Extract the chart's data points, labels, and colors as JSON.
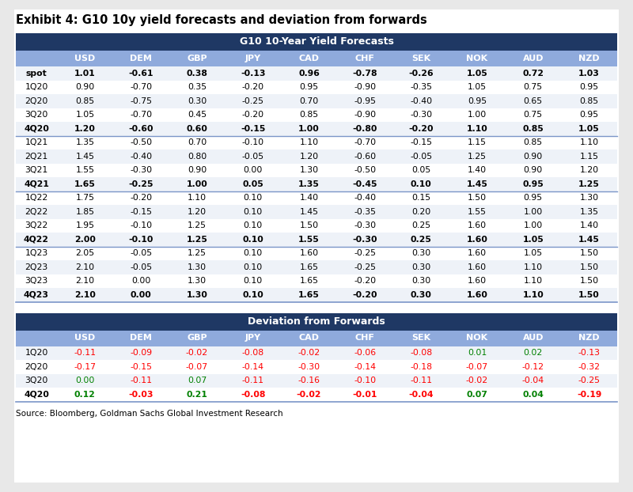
{
  "title": "Exhibit 4: G10 10y yield forecasts and deviation from forwards",
  "source": "Source: Bloomberg, Goldman Sachs Global Investment Research",
  "table1_header": "G10 10-Year Yield Forecasts",
  "table2_header": "Deviation from Forwards",
  "columns": [
    "",
    "USD",
    "DEM",
    "GBP",
    "JPY",
    "CAD",
    "CHF",
    "SEK",
    "NOK",
    "AUD",
    "NZD"
  ],
  "table1_rows": [
    [
      "spot",
      "1.01",
      "-0.61",
      "0.38",
      "-0.13",
      "0.96",
      "-0.78",
      "-0.26",
      "1.05",
      "0.72",
      "1.03"
    ],
    [
      "1Q20",
      "0.90",
      "-0.70",
      "0.35",
      "-0.20",
      "0.95",
      "-0.90",
      "-0.35",
      "1.05",
      "0.75",
      "0.95"
    ],
    [
      "2Q20",
      "0.85",
      "-0.75",
      "0.30",
      "-0.25",
      "0.70",
      "-0.95",
      "-0.40",
      "0.95",
      "0.65",
      "0.85"
    ],
    [
      "3Q20",
      "1.05",
      "-0.70",
      "0.45",
      "-0.20",
      "0.85",
      "-0.90",
      "-0.30",
      "1.00",
      "0.75",
      "0.95"
    ],
    [
      "4Q20",
      "1.20",
      "-0.60",
      "0.60",
      "-0.15",
      "1.00",
      "-0.80",
      "-0.20",
      "1.10",
      "0.85",
      "1.05"
    ],
    [
      "1Q21",
      "1.35",
      "-0.50",
      "0.70",
      "-0.10",
      "1.10",
      "-0.70",
      "-0.15",
      "1.15",
      "0.85",
      "1.10"
    ],
    [
      "2Q21",
      "1.45",
      "-0.40",
      "0.80",
      "-0.05",
      "1.20",
      "-0.60",
      "-0.05",
      "1.25",
      "0.90",
      "1.15"
    ],
    [
      "3Q21",
      "1.55",
      "-0.30",
      "0.90",
      "0.00",
      "1.30",
      "-0.50",
      "0.05",
      "1.40",
      "0.90",
      "1.20"
    ],
    [
      "4Q21",
      "1.65",
      "-0.25",
      "1.00",
      "0.05",
      "1.35",
      "-0.45",
      "0.10",
      "1.45",
      "0.95",
      "1.25"
    ],
    [
      "1Q22",
      "1.75",
      "-0.20",
      "1.10",
      "0.10",
      "1.40",
      "-0.40",
      "0.15",
      "1.50",
      "0.95",
      "1.30"
    ],
    [
      "2Q22",
      "1.85",
      "-0.15",
      "1.20",
      "0.10",
      "1.45",
      "-0.35",
      "0.20",
      "1.55",
      "1.00",
      "1.35"
    ],
    [
      "3Q22",
      "1.95",
      "-0.10",
      "1.25",
      "0.10",
      "1.50",
      "-0.30",
      "0.25",
      "1.60",
      "1.00",
      "1.40"
    ],
    [
      "4Q22",
      "2.00",
      "-0.10",
      "1.25",
      "0.10",
      "1.55",
      "-0.30",
      "0.25",
      "1.60",
      "1.05",
      "1.45"
    ],
    [
      "1Q23",
      "2.05",
      "-0.05",
      "1.25",
      "0.10",
      "1.60",
      "-0.25",
      "0.30",
      "1.60",
      "1.05",
      "1.50"
    ],
    [
      "2Q23",
      "2.10",
      "-0.05",
      "1.30",
      "0.10",
      "1.65",
      "-0.25",
      "0.30",
      "1.60",
      "1.10",
      "1.50"
    ],
    [
      "3Q23",
      "2.10",
      "0.00",
      "1.30",
      "0.10",
      "1.65",
      "-0.20",
      "0.30",
      "1.60",
      "1.10",
      "1.50"
    ],
    [
      "4Q23",
      "2.10",
      "0.00",
      "1.30",
      "0.10",
      "1.65",
      "-0.20",
      "0.30",
      "1.60",
      "1.10",
      "1.50"
    ]
  ],
  "table1_bold_rows": [
    0,
    4,
    8,
    12,
    16
  ],
  "table1_separator_rows": [
    4,
    8,
    12
  ],
  "table2_rows": [
    [
      "1Q20",
      "-0.11",
      "-0.09",
      "-0.02",
      "-0.08",
      "-0.02",
      "-0.06",
      "-0.08",
      "0.01",
      "0.02",
      "-0.13"
    ],
    [
      "2Q20",
      "-0.17",
      "-0.15",
      "-0.07",
      "-0.14",
      "-0.30",
      "-0.14",
      "-0.18",
      "-0.07",
      "-0.12",
      "-0.32"
    ],
    [
      "3Q20",
      "0.00",
      "-0.11",
      "0.07",
      "-0.11",
      "-0.16",
      "-0.10",
      "-0.11",
      "-0.02",
      "-0.04",
      "-0.25"
    ],
    [
      "4Q20",
      "0.12",
      "-0.03",
      "0.21",
      "-0.08",
      "-0.02",
      "-0.01",
      "-0.04",
      "0.07",
      "0.04",
      "-0.19"
    ]
  ],
  "table2_bold_rows": [
    3
  ],
  "table2_colors": [
    [
      "-",
      "-",
      "-",
      "-",
      "-",
      "-",
      "-",
      "+",
      "+",
      "-"
    ],
    [
      "-",
      "-",
      "-",
      "-",
      "-",
      "-",
      "-",
      "-",
      "-",
      "-"
    ],
    [
      "0",
      "-",
      "+",
      "-",
      "-",
      "-",
      "-",
      "-",
      "-",
      "-"
    ],
    [
      "+",
      "-",
      "+",
      "-",
      "-",
      "-",
      "-",
      "+",
      "+",
      "-"
    ]
  ],
  "dark_blue": "#1F3864",
  "light_blue": "#8FAADC",
  "page_bg": "#E8E8E8",
  "body_bg": "#FFFFFF",
  "text_color_red": "#FF0000",
  "text_color_green": "#008000"
}
